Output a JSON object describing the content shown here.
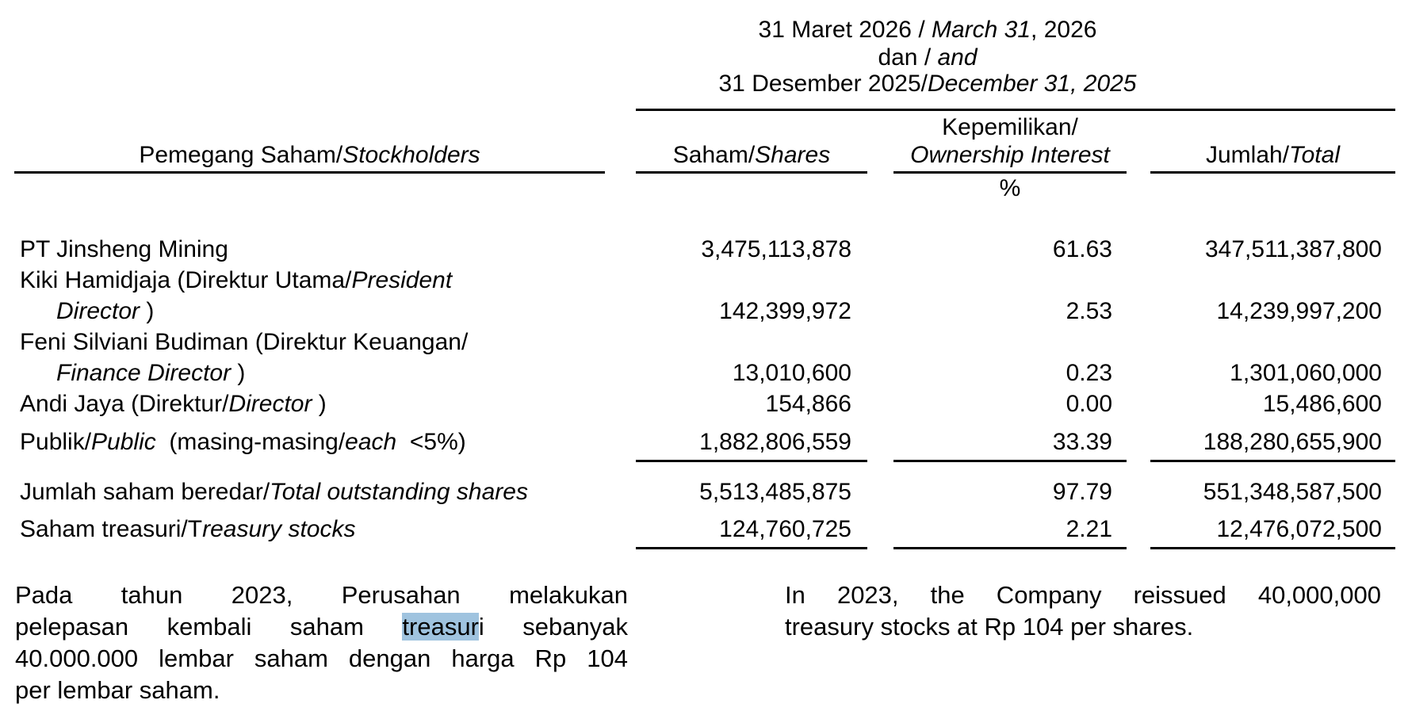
{
  "header": {
    "period_line1_id": "31 Maret 2026 / ",
    "period_line1_en": "March 31",
    "period_line1_year": ", 2026",
    "period_line2_id": "dan / ",
    "period_line2_en": "and",
    "period_line3_id": "31 Desember 2025/",
    "period_line3_en": "December 31, 2025",
    "col_holder_id": "Pemegang Saham/",
    "col_holder_en": "Stockholders",
    "col_shares_id": "Saham/",
    "col_shares_en": "Shares",
    "col_ownership_id": "Kepemilikan/",
    "col_ownership_en": "Ownership Interest",
    "col_ownership_unit": "%",
    "col_total_id": "Jumlah/",
    "col_total_en": "Total"
  },
  "rows": [
    {
      "name_a": "PT Jinsheng Mining",
      "shares": "3,475,113,878",
      "pct": "61.63",
      "total": "347,511,387,800"
    },
    {
      "name_a": "Kiki Hamidjaja (Direktur Utama/",
      "name_a_en": "President",
      "name_b_en": "Director",
      "name_b": " )",
      "shares": "142,399,972",
      "pct": "2.53",
      "total": "14,239,997,200"
    },
    {
      "name_a": "Feni Silviani Budiman (Direktur Keuangan/",
      "name_b_en": "Finance Director",
      "name_b": " )",
      "shares": "13,010,600",
      "pct": "0.23",
      "total": "1,301,060,000"
    },
    {
      "name_a": "Andi Jaya (Direktur/",
      "name_a_en": "Director",
      "name_a_end": " )",
      "shares": "154,866",
      "pct": "0.00",
      "total": "15,486,600"
    },
    {
      "name_a": "Publik/",
      "name_a_en": "Public",
      "name_a_end": "  (masing-masing/",
      "name_a_en2": "each",
      "name_a_end2": "  <5%)",
      "shares": "1,882,806,559",
      "pct": "33.39",
      "total": "188,280,655,900"
    }
  ],
  "totals": [
    {
      "label_id": "Jumlah saham beredar/",
      "label_en": "Total outstanding shares",
      "shares": "5,513,485,875",
      "pct": "97.79",
      "total": "551,348,587,500"
    },
    {
      "label_id": "Saham treasuri/T",
      "label_en": "reasury stocks",
      "shares": "124,760,725",
      "pct": "2.21",
      "total": "12,476,072,500"
    }
  ],
  "note_id": {
    "line1": "Pada tahun 2023, Perusahan melakukan",
    "line2_pre": "pelepasan kembali saham ",
    "line2_hl": "treasur",
    "line2_post": "i sebanyak",
    "line3": "40.000.000 lembar saham dengan harga Rp 104",
    "line4": "per lembar saham."
  },
  "note_en": {
    "line1": "In 2023, the Company reissued 40,000,000",
    "line2": "treasury stocks at Rp 104 per shares."
  },
  "colors": {
    "highlight": "#9fc3df",
    "text": "#000000"
  }
}
